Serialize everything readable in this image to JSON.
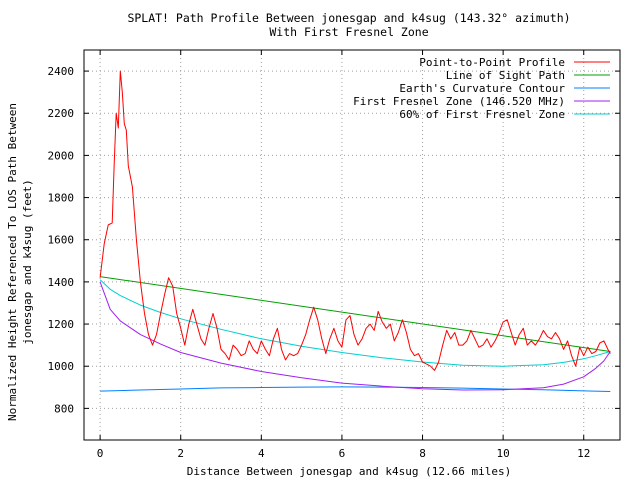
{
  "chart_data": {
    "type": "line",
    "title": "SPLAT! Path Profile Between jonesgap and k4sug (143.32° azimuth)",
    "subtitle": "With First Fresnel Zone",
    "xlabel": "Distance Between jonesgap and k4sug (12.66 miles)",
    "ylabel_line1": "Normalized Height Referenced To LOS Path Between",
    "ylabel_line2": "jonesgap and k4sug (feet)",
    "xlim": [
      -0.4,
      12.9
    ],
    "ylim": [
      650,
      2500
    ],
    "x_ticks": [
      0,
      2,
      4,
      6,
      8,
      10,
      12
    ],
    "y_ticks": [
      800,
      1000,
      1200,
      1400,
      1600,
      1800,
      2000,
      2200,
      2400
    ],
    "grid": true,
    "legend_position": "top-right",
    "series": [
      {
        "name": "Point-to-Point Profile",
        "color": "#ff0000",
        "points": [
          [
            0,
            1420
          ],
          [
            0.1,
            1580
          ],
          [
            0.2,
            1670
          ],
          [
            0.3,
            1680
          ],
          [
            0.35,
            1960
          ],
          [
            0.4,
            2200
          ],
          [
            0.45,
            2130
          ],
          [
            0.5,
            2400
          ],
          [
            0.55,
            2300
          ],
          [
            0.6,
            2150
          ],
          [
            0.65,
            2120
          ],
          [
            0.7,
            1950
          ],
          [
            0.8,
            1850
          ],
          [
            0.9,
            1600
          ],
          [
            1.0,
            1400
          ],
          [
            1.1,
            1250
          ],
          [
            1.2,
            1150
          ],
          [
            1.3,
            1100
          ],
          [
            1.4,
            1150
          ],
          [
            1.5,
            1250
          ],
          [
            1.6,
            1340
          ],
          [
            1.7,
            1420
          ],
          [
            1.8,
            1380
          ],
          [
            1.9,
            1250
          ],
          [
            2.0,
            1180
          ],
          [
            2.1,
            1100
          ],
          [
            2.2,
            1200
          ],
          [
            2.3,
            1270
          ],
          [
            2.4,
            1200
          ],
          [
            2.5,
            1130
          ],
          [
            2.6,
            1100
          ],
          [
            2.7,
            1180
          ],
          [
            2.8,
            1250
          ],
          [
            2.9,
            1180
          ],
          [
            3.0,
            1080
          ],
          [
            3.1,
            1060
          ],
          [
            3.2,
            1030
          ],
          [
            3.3,
            1100
          ],
          [
            3.4,
            1080
          ],
          [
            3.5,
            1050
          ],
          [
            3.6,
            1060
          ],
          [
            3.7,
            1120
          ],
          [
            3.8,
            1080
          ],
          [
            3.9,
            1060
          ],
          [
            4.0,
            1120
          ],
          [
            4.1,
            1080
          ],
          [
            4.2,
            1050
          ],
          [
            4.3,
            1130
          ],
          [
            4.4,
            1180
          ],
          [
            4.5,
            1080
          ],
          [
            4.6,
            1030
          ],
          [
            4.7,
            1060
          ],
          [
            4.8,
            1050
          ],
          [
            4.9,
            1060
          ],
          [
            5.0,
            1100
          ],
          [
            5.1,
            1150
          ],
          [
            5.2,
            1220
          ],
          [
            5.3,
            1280
          ],
          [
            5.4,
            1220
          ],
          [
            5.5,
            1130
          ],
          [
            5.6,
            1060
          ],
          [
            5.7,
            1130
          ],
          [
            5.8,
            1180
          ],
          [
            5.9,
            1120
          ],
          [
            6.0,
            1090
          ],
          [
            6.1,
            1220
          ],
          [
            6.2,
            1240
          ],
          [
            6.3,
            1150
          ],
          [
            6.4,
            1100
          ],
          [
            6.5,
            1130
          ],
          [
            6.6,
            1180
          ],
          [
            6.7,
            1200
          ],
          [
            6.8,
            1170
          ],
          [
            6.9,
            1260
          ],
          [
            7.0,
            1210
          ],
          [
            7.1,
            1180
          ],
          [
            7.2,
            1200
          ],
          [
            7.3,
            1120
          ],
          [
            7.4,
            1160
          ],
          [
            7.5,
            1220
          ],
          [
            7.6,
            1160
          ],
          [
            7.7,
            1080
          ],
          [
            7.8,
            1050
          ],
          [
            7.9,
            1060
          ],
          [
            8.0,
            1020
          ],
          [
            8.1,
            1010
          ],
          [
            8.2,
            1000
          ],
          [
            8.3,
            980
          ],
          [
            8.4,
            1020
          ],
          [
            8.5,
            1100
          ],
          [
            8.6,
            1170
          ],
          [
            8.7,
            1130
          ],
          [
            8.8,
            1160
          ],
          [
            8.9,
            1100
          ],
          [
            9.0,
            1100
          ],
          [
            9.1,
            1120
          ],
          [
            9.2,
            1170
          ],
          [
            9.3,
            1130
          ],
          [
            9.4,
            1090
          ],
          [
            9.5,
            1100
          ],
          [
            9.6,
            1130
          ],
          [
            9.7,
            1090
          ],
          [
            9.8,
            1120
          ],
          [
            9.9,
            1160
          ],
          [
            10.0,
            1210
          ],
          [
            10.1,
            1220
          ],
          [
            10.2,
            1160
          ],
          [
            10.3,
            1100
          ],
          [
            10.4,
            1150
          ],
          [
            10.5,
            1180
          ],
          [
            10.6,
            1100
          ],
          [
            10.7,
            1120
          ],
          [
            10.8,
            1100
          ],
          [
            10.9,
            1130
          ],
          [
            11.0,
            1170
          ],
          [
            11.1,
            1140
          ],
          [
            11.2,
            1130
          ],
          [
            11.3,
            1160
          ],
          [
            11.4,
            1130
          ],
          [
            11.5,
            1080
          ],
          [
            11.6,
            1120
          ],
          [
            11.7,
            1050
          ],
          [
            11.8,
            1000
          ],
          [
            11.9,
            1090
          ],
          [
            12.0,
            1050
          ],
          [
            12.1,
            1090
          ],
          [
            12.2,
            1060
          ],
          [
            12.3,
            1070
          ],
          [
            12.4,
            1110
          ],
          [
            12.5,
            1120
          ],
          [
            12.6,
            1080
          ],
          [
            12.66,
            1060
          ]
        ]
      },
      {
        "name": "Line of Sight Path",
        "color": "#00a000",
        "points": [
          [
            0,
            1425
          ],
          [
            12.66,
            1070
          ]
        ]
      },
      {
        "name": "Earth's Curvature Contour",
        "color": "#0080ff",
        "points": [
          [
            0,
            882
          ],
          [
            1,
            887
          ],
          [
            2,
            892
          ],
          [
            3,
            897
          ],
          [
            4,
            899
          ],
          [
            5,
            901
          ],
          [
            6,
            902
          ],
          [
            7,
            901
          ],
          [
            8,
            899
          ],
          [
            9,
            896
          ],
          [
            10,
            892
          ],
          [
            11,
            888
          ],
          [
            12,
            883
          ],
          [
            12.66,
            880
          ]
        ]
      },
      {
        "name": "First Fresnel Zone (146.520 MHz)",
        "color": "#a020f0",
        "points": [
          [
            0,
            1400
          ],
          [
            0.25,
            1270
          ],
          [
            0.5,
            1215
          ],
          [
            1,
            1150
          ],
          [
            1.5,
            1105
          ],
          [
            2,
            1065
          ],
          [
            3,
            1015
          ],
          [
            4,
            975
          ],
          [
            5,
            945
          ],
          [
            6,
            920
          ],
          [
            7,
            905
          ],
          [
            8,
            893
          ],
          [
            9,
            887
          ],
          [
            10,
            888
          ],
          [
            11,
            898
          ],
          [
            11.5,
            915
          ],
          [
            12,
            950
          ],
          [
            12.3,
            990
          ],
          [
            12.5,
            1025
          ],
          [
            12.66,
            1070
          ]
        ]
      },
      {
        "name": "60% of First Fresnel Zone",
        "color": "#00d0d0",
        "points": [
          [
            0,
            1410
          ],
          [
            0.25,
            1365
          ],
          [
            0.5,
            1335
          ],
          [
            1,
            1290
          ],
          [
            1.5,
            1255
          ],
          [
            2,
            1225
          ],
          [
            3,
            1175
          ],
          [
            4,
            1130
          ],
          [
            5,
            1095
          ],
          [
            6,
            1065
          ],
          [
            7,
            1040
          ],
          [
            8,
            1020
          ],
          [
            9,
            1005
          ],
          [
            10,
            1000
          ],
          [
            11,
            1007
          ],
          [
            11.5,
            1018
          ],
          [
            12,
            1035
          ],
          [
            12.3,
            1050
          ],
          [
            12.66,
            1070
          ]
        ]
      }
    ]
  }
}
